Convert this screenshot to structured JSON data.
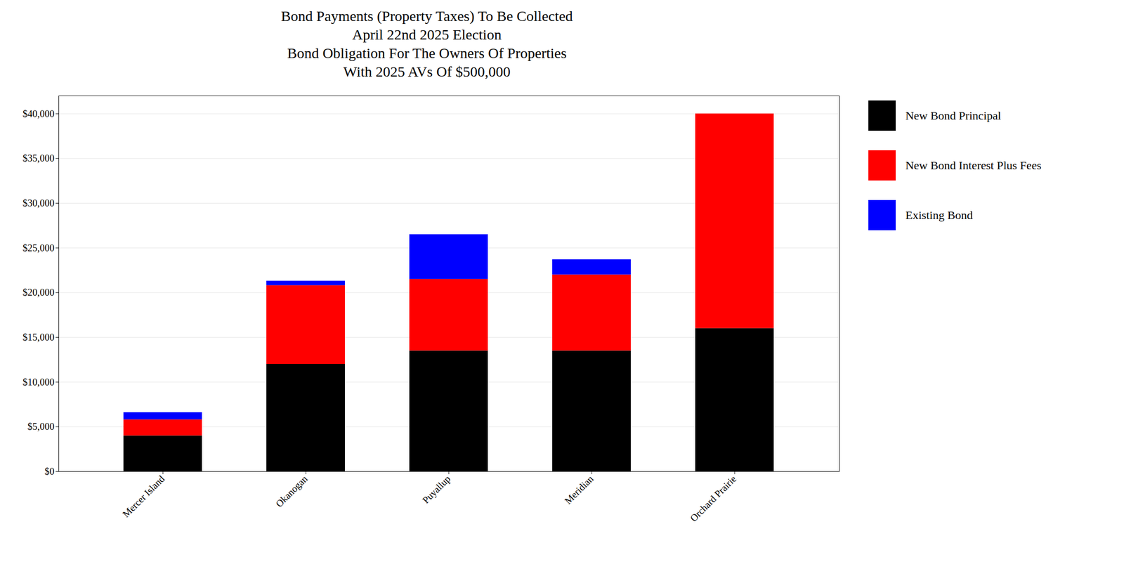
{
  "chart_data": {
    "type": "bar",
    "stacked": true,
    "title": [
      "Bond Payments (Property Taxes) To Be Collected",
      "April 22nd 2025 Election",
      "Bond Obligation For The Owners Of Properties",
      "With 2025 AVs Of $500,000"
    ],
    "categories": [
      "Mercer Island",
      "Okanogan",
      "Puyallup",
      "Meridian",
      "Orchard Prairie"
    ],
    "series": [
      {
        "name": "New Bond Principal",
        "color": "#000000",
        "values": [
          4000,
          12000,
          13500,
          13500,
          16000
        ]
      },
      {
        "name": "New Bond Interest Plus Fees",
        "color": "#ff0000",
        "values": [
          1800,
          8800,
          8000,
          8500,
          24000
        ]
      },
      {
        "name": "Existing Bond",
        "color": "#0000ff",
        "values": [
          800,
          500,
          5000,
          1700,
          0
        ]
      }
    ],
    "ylim": [
      0,
      42000
    ],
    "yticks": [
      {
        "value": 0,
        "label": "$0"
      },
      {
        "value": 5000,
        "label": "$5,000"
      },
      {
        "value": 10000,
        "label": "$10,000"
      },
      {
        "value": 15000,
        "label": "$15,000"
      },
      {
        "value": 20000,
        "label": "$20,000"
      },
      {
        "value": 25000,
        "label": "$25,000"
      },
      {
        "value": 30000,
        "label": "$30,000"
      },
      {
        "value": 35000,
        "label": "$35,000"
      },
      {
        "value": 40000,
        "label": "$40,000"
      }
    ],
    "grid": true,
    "legend": "right"
  }
}
